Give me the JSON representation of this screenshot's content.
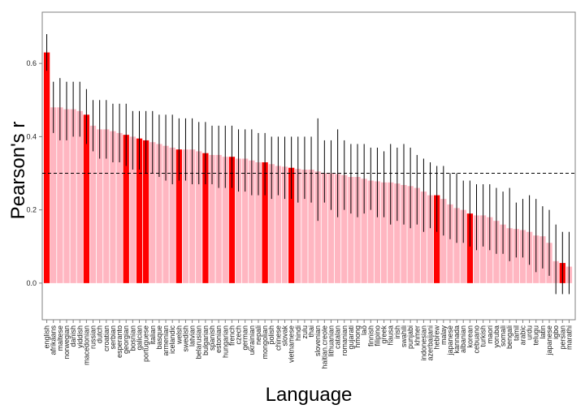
{
  "chart_data": {
    "type": "bar",
    "xlabel": "Language",
    "ylabel": "Pearson's r",
    "ylim": [
      -0.1,
      0.74
    ],
    "yticks": [
      "0.0",
      "0.2",
      "0.4",
      "0.6"
    ],
    "reference_line": 0.3,
    "colors": {
      "normal": "#ffb6c1",
      "highlight": "#ff0000",
      "error": "#000000",
      "reference": "#000000"
    },
    "categories": [
      "english",
      "afrikaans",
      "maltese",
      "norwegian",
      "danish",
      "yiddish",
      "macedonian",
      "russian",
      "dutch",
      "croatian",
      "serbian",
      "esperanto",
      "georgian",
      "bosnian",
      "galician",
      "portuguese",
      "italian",
      "basque",
      "armenian",
      "icelandic",
      "welsh",
      "swedish",
      "latvian",
      "belarusian",
      "bulgarian",
      "spanish",
      "estonian",
      "hungarian",
      "french",
      "czech",
      "german",
      "ukrainian",
      "nepali",
      "mongolian",
      "polish",
      "chinese",
      "slovak",
      "vietnamese",
      "hindi",
      "zulu",
      "thai",
      "slovenian",
      "haitian.creole",
      "lithuanian",
      "catalan",
      "romanian",
      "gujarati",
      "hmong",
      "lao",
      "finnish",
      "filipino",
      "greek",
      "hausa",
      "irish",
      "swahili",
      "punjabi",
      "khmer",
      "indonesian",
      "azerbaijani",
      "hebrew",
      "malay",
      "japanese",
      "kannada",
      "albanian",
      "korean",
      "cebuano",
      "turkish",
      "maori",
      "yoruba",
      "somali",
      "bengali",
      "tamil",
      "arabic",
      "urdu",
      "telugu",
      "latin",
      "japanese",
      "igbo",
      "persian",
      "marathi"
    ],
    "values": [
      0.63,
      0.48,
      0.48,
      0.475,
      0.475,
      0.47,
      0.46,
      0.43,
      0.42,
      0.42,
      0.415,
      0.41,
      0.405,
      0.4,
      0.395,
      0.39,
      0.385,
      0.38,
      0.375,
      0.37,
      0.365,
      0.365,
      0.365,
      0.36,
      0.355,
      0.35,
      0.35,
      0.345,
      0.345,
      0.34,
      0.34,
      0.335,
      0.33,
      0.33,
      0.325,
      0.32,
      0.318,
      0.315,
      0.312,
      0.31,
      0.31,
      0.305,
      0.3,
      0.3,
      0.298,
      0.295,
      0.29,
      0.29,
      0.285,
      0.28,
      0.278,
      0.275,
      0.275,
      0.272,
      0.268,
      0.265,
      0.26,
      0.25,
      0.24,
      0.24,
      0.23,
      0.215,
      0.205,
      0.2,
      0.19,
      0.185,
      0.185,
      0.18,
      0.17,
      0.16,
      0.15,
      0.148,
      0.145,
      0.14,
      0.13,
      0.128,
      0.11,
      0.06,
      0.055,
      0.045
    ],
    "lower": [
      0.58,
      0.41,
      0.39,
      0.39,
      0.4,
      0.4,
      0.38,
      0.36,
      0.34,
      0.34,
      0.33,
      0.33,
      0.32,
      0.31,
      0.31,
      0.3,
      0.3,
      0.29,
      0.28,
      0.27,
      0.28,
      0.28,
      0.27,
      0.27,
      0.27,
      0.27,
      0.26,
      0.26,
      0.26,
      0.25,
      0.25,
      0.24,
      0.24,
      0.24,
      0.23,
      0.24,
      0.23,
      0.23,
      0.22,
      0.23,
      0.22,
      0.17,
      0.22,
      0.2,
      0.18,
      0.2,
      0.19,
      0.18,
      0.19,
      0.2,
      0.18,
      0.18,
      0.16,
      0.17,
      0.16,
      0.15,
      0.16,
      0.14,
      0.15,
      0.14,
      0.13,
      0.12,
      0.11,
      0.11,
      0.1,
      0.09,
      0.1,
      0.09,
      0.08,
      0.08,
      0.06,
      0.07,
      0.07,
      0.05,
      0.03,
      0.04,
      0.02,
      -0.03,
      -0.03,
      -0.03
    ],
    "upper": [
      0.68,
      0.55,
      0.56,
      0.55,
      0.55,
      0.55,
      0.53,
      0.5,
      0.5,
      0.5,
      0.49,
      0.49,
      0.49,
      0.47,
      0.47,
      0.47,
      0.47,
      0.46,
      0.46,
      0.46,
      0.45,
      0.45,
      0.45,
      0.44,
      0.44,
      0.43,
      0.43,
      0.43,
      0.43,
      0.42,
      0.42,
      0.42,
      0.41,
      0.41,
      0.4,
      0.4,
      0.4,
      0.4,
      0.4,
      0.4,
      0.4,
      0.45,
      0.39,
      0.39,
      0.42,
      0.39,
      0.38,
      0.38,
      0.38,
      0.37,
      0.37,
      0.36,
      0.38,
      0.37,
      0.38,
      0.37,
      0.35,
      0.34,
      0.33,
      0.32,
      0.32,
      0.3,
      0.3,
      0.28,
      0.28,
      0.27,
      0.27,
      0.27,
      0.26,
      0.25,
      0.26,
      0.22,
      0.23,
      0.24,
      0.23,
      0.21,
      0.2,
      0.16,
      0.14,
      0.14
    ],
    "highlighted": [
      "english",
      "macedonian",
      "georgian",
      "galician",
      "portuguese",
      "welsh",
      "bulgarian",
      "french",
      "mongolian",
      "vietnamese",
      "hebrew",
      "korean",
      "persian"
    ],
    "grid": false,
    "legend": "none"
  }
}
